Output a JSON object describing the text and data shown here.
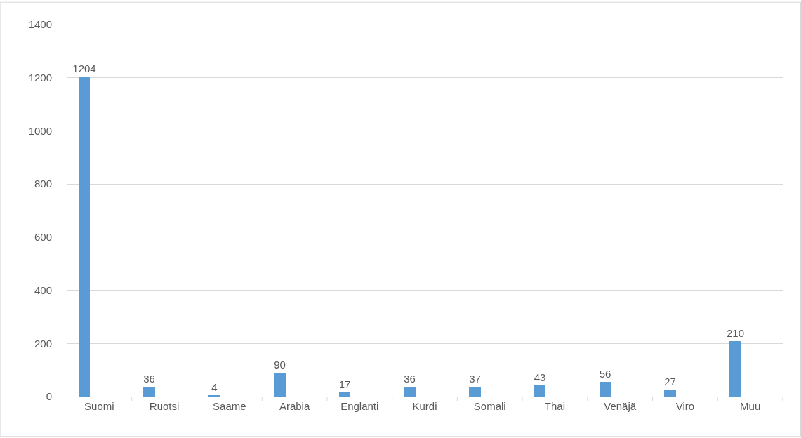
{
  "chart_data": {
    "type": "bar",
    "categories": [
      "Suomi",
      "Ruotsi",
      "Saame",
      "Arabia",
      "Englanti",
      "Kurdi",
      "Somali",
      "Thai",
      "Venäjä",
      "Viro",
      "Muu"
    ],
    "values": [
      1204,
      36,
      4,
      90,
      17,
      36,
      37,
      43,
      56,
      27,
      210
    ],
    "color": "#5b9bd5",
    "ylim": [
      0,
      1400
    ],
    "yticks": [
      0,
      200,
      400,
      600,
      800,
      1000,
      1200,
      1400
    ],
    "grid": "y",
    "data_labels": true
  }
}
